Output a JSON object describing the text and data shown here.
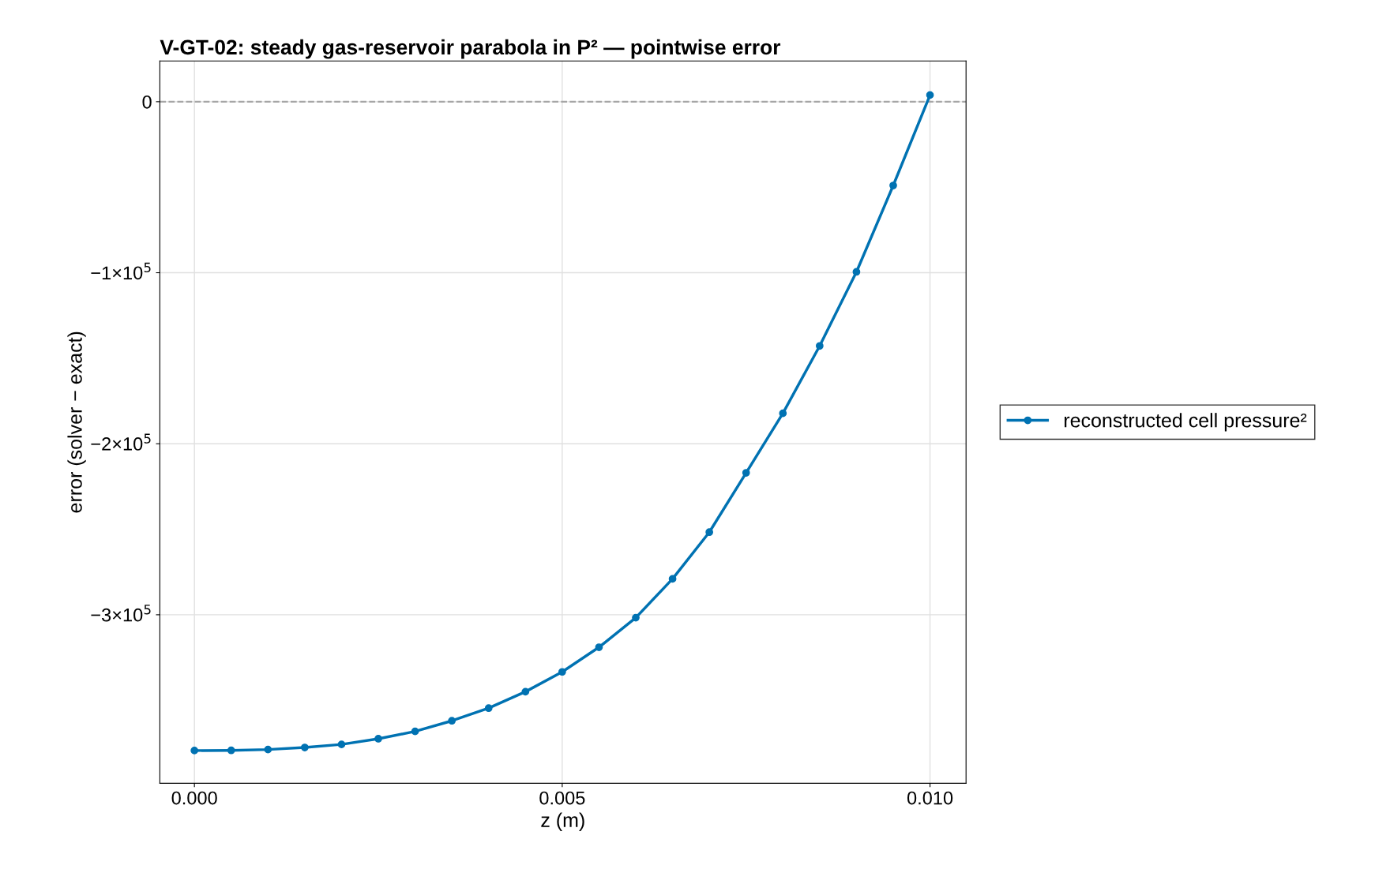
{
  "chart_data": {
    "type": "line",
    "title": "V-GT-02: steady gas-reservoir parabola in P² — pointwise error",
    "xlabel": "z (m)",
    "ylabel": "error (solver − exact)",
    "series": [
      {
        "name": "reconstructed cell pressure²",
        "color": "#0072b2",
        "x": [
          0,
          0.0005,
          0.001,
          0.0015,
          0.002,
          0.0025,
          0.003,
          0.0035,
          0.004,
          0.0045,
          0.005,
          0.0055,
          0.006,
          0.0065,
          0.007,
          0.0075,
          0.008,
          0.0085,
          0.009,
          0.0095,
          0.01
        ],
        "values": [
          -379400,
          -379300,
          -378800,
          -377600,
          -375800,
          -372500,
          -368200,
          -362000,
          -354600,
          -345000,
          -333400,
          -319000,
          -301700,
          -279000,
          -251700,
          -217000,
          -182200,
          -142800,
          -99500,
          -49000,
          3900
        ]
      }
    ],
    "xlim": [
      -0.00047,
      0.01049
    ],
    "ylim": [
      -398500,
      23800
    ],
    "xticks": [
      {
        "value": 0,
        "label": "0.000"
      },
      0.005,
      {
        "value": 0.01,
        "label": "0.010"
      }
    ],
    "yticks": [
      {
        "value": -300000,
        "label": "−3×10$^{5}$"
      },
      {
        "value": -200000,
        "label": "−2×10$^{5}$"
      },
      {
        "value": -100000,
        "label": "−1×10$^{5}$"
      },
      0
    ],
    "ref_lines": [
      {
        "axis": "y",
        "value": 0,
        "color": "#a6a6a6",
        "line_style": "dashed"
      }
    ],
    "grid": true,
    "legend": "right",
    "marker": "circle",
    "line_style": "solid"
  }
}
